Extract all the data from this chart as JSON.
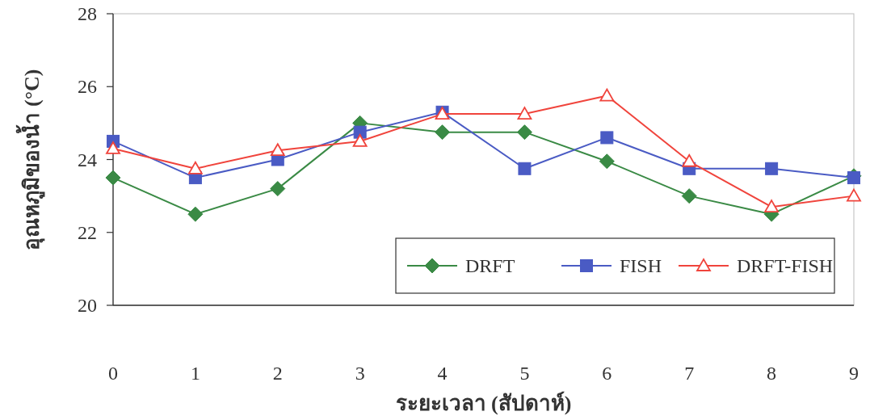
{
  "chart_data": {
    "type": "line",
    "xlabel": "ระยะเวลา (สัปดาห์)",
    "ylabel": "อุณหภูมิของน้ำ (°C)",
    "x": [
      0,
      1,
      2,
      3,
      4,
      5,
      6,
      7,
      8,
      9
    ],
    "xlim": [
      0,
      9
    ],
    "xticks": [
      0,
      1,
      2,
      3,
      4,
      5,
      6,
      7,
      8,
      9
    ],
    "ylim": [
      20,
      28
    ],
    "yticks": [
      20,
      22,
      24,
      26,
      28
    ],
    "grid": false,
    "legend": "bottom right",
    "line_style": "solid",
    "series": [
      {
        "name": "DRFT",
        "color": "#3a8a45",
        "marker": "diamond",
        "values": [
          23.5,
          22.5,
          23.2,
          25.0,
          24.75,
          24.75,
          23.95,
          23.0,
          22.5,
          23.55
        ]
      },
      {
        "name": "FISH",
        "color": "#4a5bc4",
        "marker": "square",
        "values": [
          24.5,
          23.5,
          24.0,
          24.75,
          25.3,
          23.75,
          24.6,
          23.75,
          23.75,
          23.5
        ]
      },
      {
        "name": "DRFT-FISH",
        "color": "#f0443c",
        "marker": "triangle",
        "values": [
          24.3,
          23.75,
          24.25,
          24.5,
          25.25,
          25.25,
          25.75,
          23.95,
          22.7,
          23.0
        ]
      }
    ]
  }
}
